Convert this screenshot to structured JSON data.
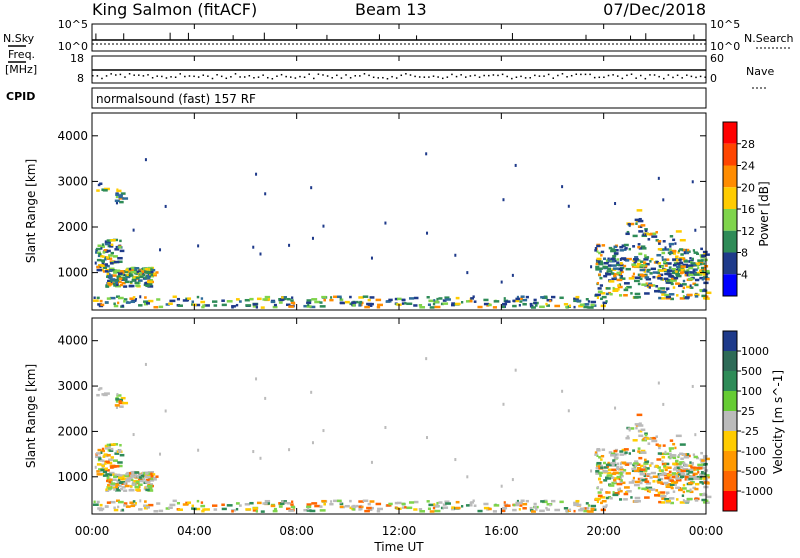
{
  "header": {
    "station": "King Salmon (fitACF)",
    "beam": "Beam 13",
    "date": "07/Dec/2018"
  },
  "side_labels": {
    "nsky": "N.Sky",
    "nsearch": "N.Search",
    "freq_line1": "Freq.",
    "freq_line2": "[MHz]",
    "cpid": "CPID",
    "nave": "Nave"
  },
  "strip_ticks": {
    "noise_left": [
      "10^5",
      "10^0"
    ],
    "noise_right": [
      "10^5",
      "10^0"
    ],
    "freq_left": [
      "18",
      "8"
    ],
    "freq_right": [
      "60",
      "0"
    ]
  },
  "cpid_text": "normalsound (fast) 157 RF",
  "axes": {
    "ylabel": "Slant Range [km]",
    "xlabel": "Time UT",
    "y_ticks": [
      "4000",
      "3000",
      "2000",
      "1000"
    ],
    "x_ticks": [
      "00:00",
      "04:00",
      "08:00",
      "12:00",
      "16:00",
      "20:00",
      "00:00"
    ]
  },
  "chart_data": [
    {
      "type": "heatmap",
      "name": "power",
      "x_range": [
        "00:00",
        "24:00"
      ],
      "ylim": [
        180,
        4500
      ],
      "colorbar": {
        "label": "Power [dB]",
        "ticks": [
          "28",
          "24",
          "20",
          "16",
          "12",
          "8",
          "4"
        ],
        "colors": [
          "#ff0000",
          "#ff4500",
          "#ff8c00",
          "#ffcc00",
          "#7fd44b",
          "#2e8b57",
          "#1e3a8a",
          "#0000ff"
        ]
      }
    },
    {
      "type": "heatmap",
      "name": "velocity",
      "x_range": [
        "00:00",
        "24:00"
      ],
      "ylim": [
        180,
        4500
      ],
      "colorbar": {
        "label": "Velocity [m s^-1]",
        "ticks": [
          "1000",
          "500",
          "100",
          "25",
          "-25",
          "-100",
          "-500",
          "-1000"
        ],
        "colors": [
          "#1e3a8a",
          "#2e6b57",
          "#2e8b57",
          "#66cc33",
          "#bbbbbb",
          "#ffcc00",
          "#ff9900",
          "#ff6600",
          "#ff0000"
        ]
      }
    }
  ]
}
